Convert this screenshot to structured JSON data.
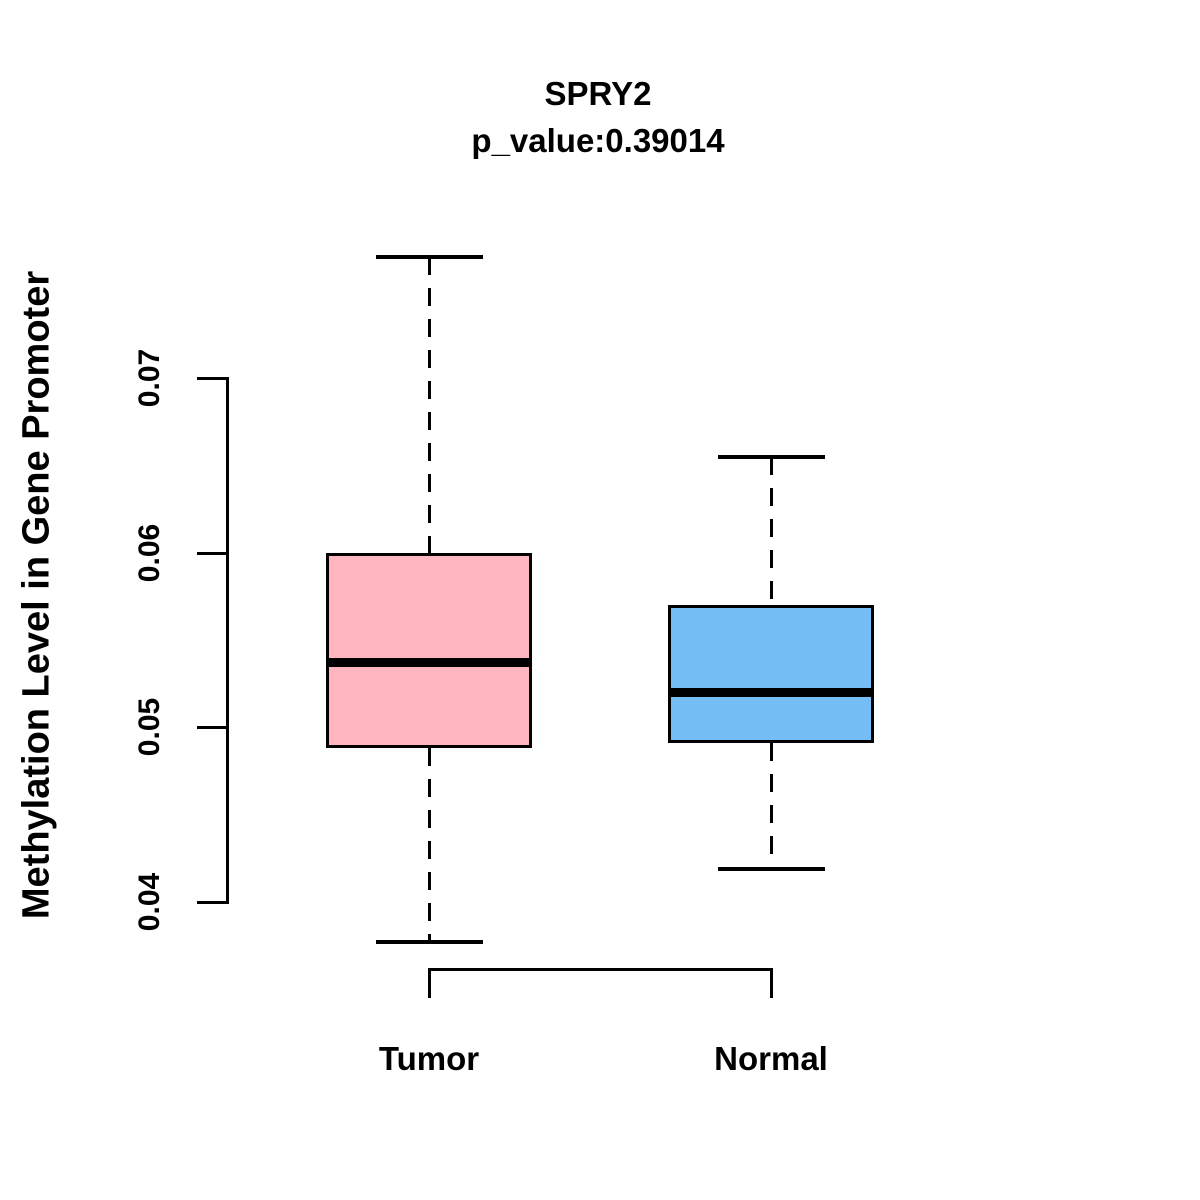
{
  "chart_data": {
    "type": "boxplot",
    "title": "SPRY2",
    "subtitle": "p_value:0.39014",
    "ylabel": "Methylation Level in Gene Promoter",
    "xlabel": "",
    "categories": [
      "Tumor",
      "Normal"
    ],
    "y_ticks": [
      "0.04",
      "0.05",
      "0.06",
      "0.07"
    ],
    "y_tick_values": [
      0.04,
      0.05,
      0.06,
      0.07
    ],
    "ylim": [
      0.0377,
      0.0769
    ],
    "grid": false,
    "legend": false,
    "whisker_style": "dashed",
    "series": [
      {
        "name": "Tumor",
        "color": "#FFB6C1",
        "lower_whisker": 0.0377,
        "q1": 0.0488,
        "median": 0.0537,
        "q3": 0.06,
        "upper_whisker": 0.0769,
        "outliers": []
      },
      {
        "name": "Normal",
        "color": "#75BEF5",
        "lower_whisker": 0.0419,
        "q1": 0.0491,
        "median": 0.052,
        "q3": 0.057,
        "upper_whisker": 0.0655,
        "outliers": []
      }
    ]
  },
  "colors": {
    "text": "#000000",
    "axis": "#000000",
    "background": "#FFFFFF",
    "tumor_box": "#FFB6C1",
    "normal_box": "#75BEF5"
  }
}
